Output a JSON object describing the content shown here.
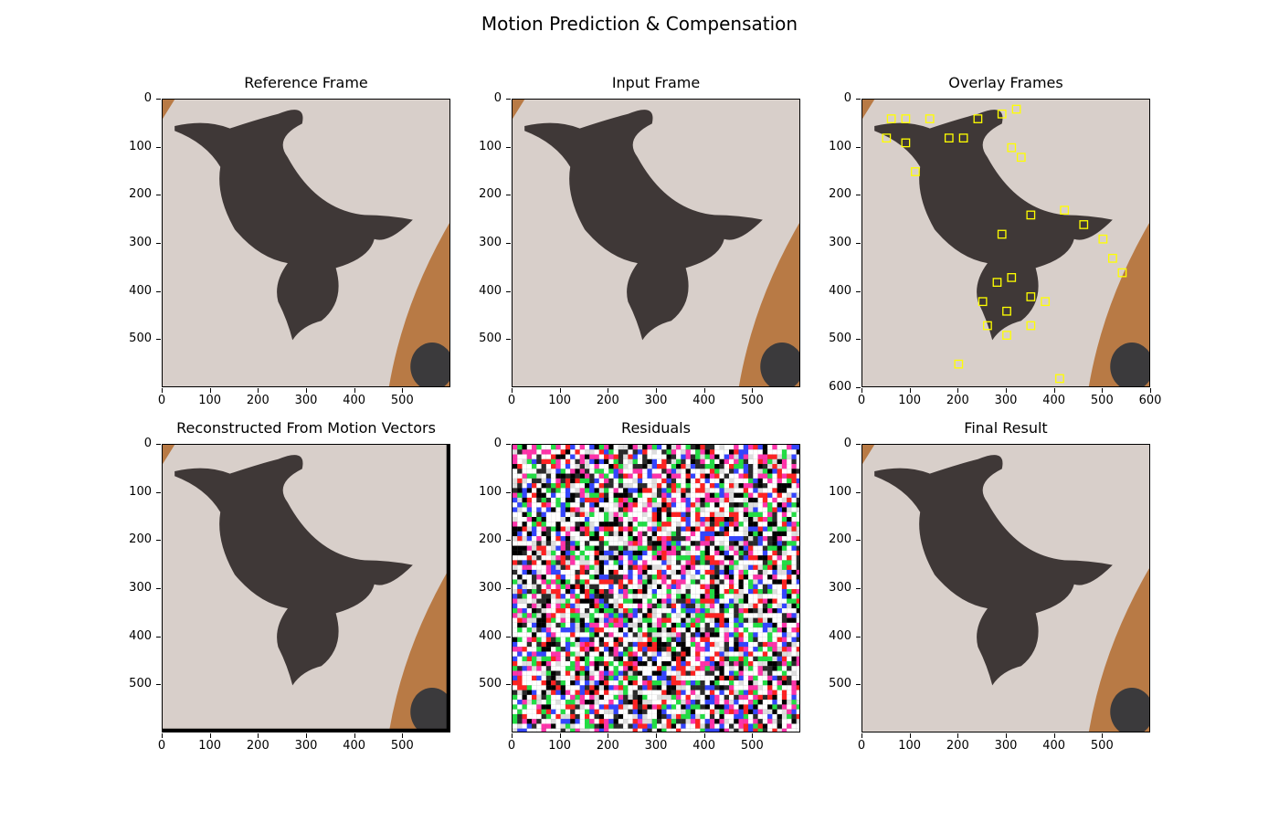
{
  "figure": {
    "suptitle": "Motion Prediction & Compensation"
  },
  "panels": [
    {
      "title": "Reference Frame",
      "xticks": [
        "0",
        "100",
        "200",
        "300",
        "400",
        "500"
      ],
      "yticks": [
        "0",
        "100",
        "200",
        "300",
        "400",
        "500"
      ],
      "image": "cat-photo"
    },
    {
      "title": "Input Frame",
      "xticks": [
        "0",
        "100",
        "200",
        "300",
        "400",
        "500"
      ],
      "yticks": [
        "0",
        "100",
        "200",
        "300",
        "400",
        "500"
      ],
      "image": "cat-photo"
    },
    {
      "title": "Overlay Frames",
      "xticks": [
        "0",
        "100",
        "200",
        "300",
        "400",
        "500",
        "600"
      ],
      "yticks": [
        "0",
        "100",
        "200",
        "300",
        "400",
        "500",
        "600"
      ],
      "image": "cat-photo-with-motion-vector-boxes"
    },
    {
      "title": "Reconstructed From Motion Vectors",
      "xticks": [
        "0",
        "100",
        "200",
        "300",
        "400",
        "500"
      ],
      "yticks": [
        "0",
        "100",
        "200",
        "300",
        "400",
        "500"
      ],
      "image": "blocky-cat-reconstruction"
    },
    {
      "title": "Residuals",
      "xticks": [
        "0",
        "100",
        "200",
        "300",
        "400",
        "500"
      ],
      "yticks": [
        "0",
        "100",
        "200",
        "300",
        "400",
        "500"
      ],
      "image": "noisy-residual-map"
    },
    {
      "title": "Final Result",
      "xticks": [
        "0",
        "100",
        "200",
        "300",
        "400",
        "500"
      ],
      "yticks": [
        "0",
        "100",
        "200",
        "300",
        "400",
        "500"
      ],
      "image": "cat-photo"
    }
  ],
  "colors": {
    "carpet": "#d8cfca",
    "cat": "#3f3837",
    "wood": "#b87a45",
    "overlay_boxes": "#ffff00"
  }
}
